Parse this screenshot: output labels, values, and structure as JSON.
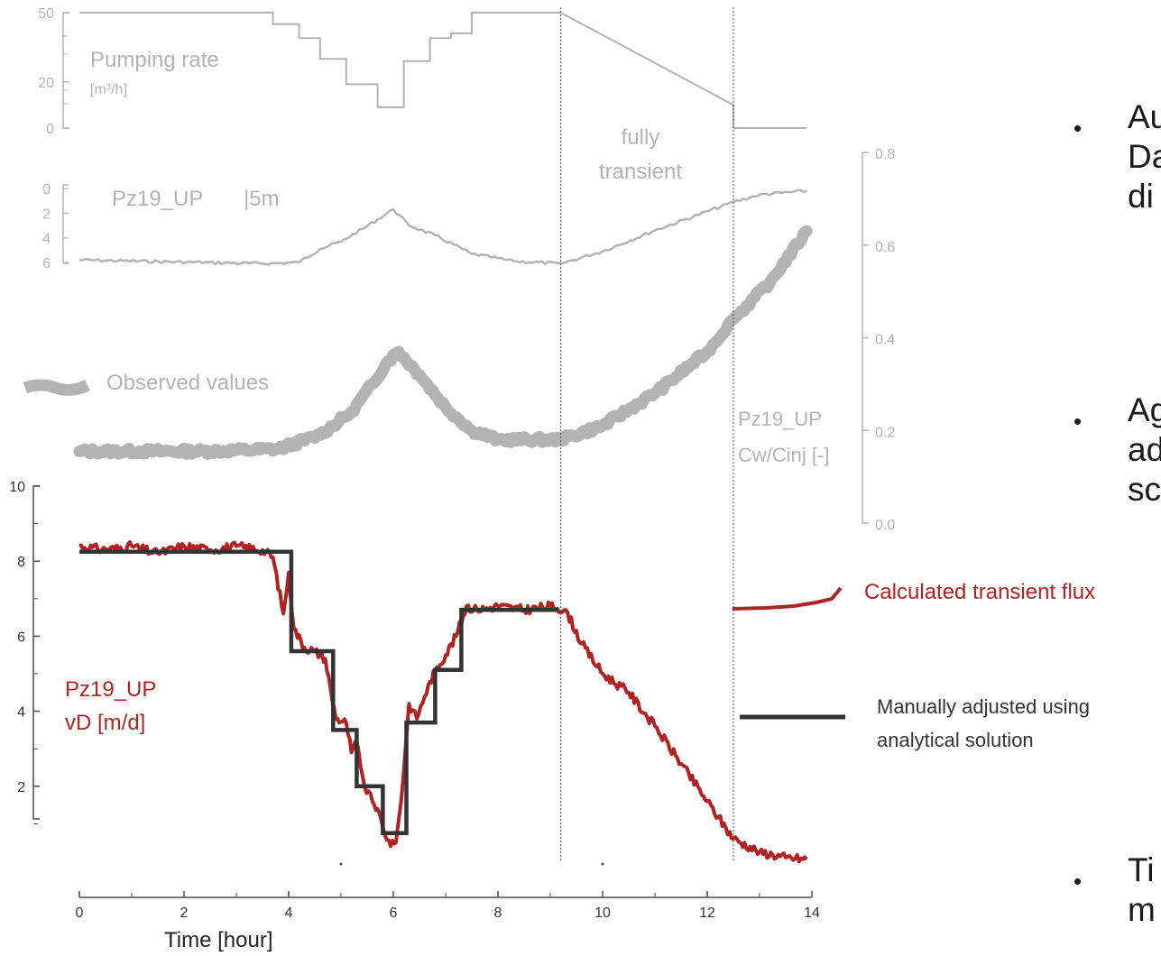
{
  "chart_data": [
    {
      "type": "line",
      "panel": "pumping",
      "label": "Pumping rate",
      "unit": "[m³/h]",
      "y_ticks": [
        0,
        20,
        50
      ],
      "x": [
        0,
        3.7,
        3.7,
        4.2,
        4.2,
        4.6,
        4.6,
        5.1,
        5.1,
        5.7,
        5.7,
        6.2,
        6.2,
        6.7,
        6.7,
        7.1,
        7.1,
        7.5,
        7.5,
        9.2,
        12.5,
        12.5,
        13.9
      ],
      "y": [
        50,
        50,
        45,
        45,
        39,
        39,
        30,
        30,
        19,
        19,
        9,
        9,
        29,
        29,
        39,
        39,
        41,
        41,
        50,
        50,
        10,
        0,
        0
      ]
    },
    {
      "type": "line",
      "panel": "groundwater",
      "label": "Pz19_UP",
      "scale_label": "|5m",
      "y_ticks": [
        0,
        2,
        4,
        6
      ],
      "x": [
        0,
        3.5,
        4.2,
        4.6,
        5.0,
        5.4,
        5.7,
        6.0,
        6.3,
        6.8,
        7.5,
        8.3,
        9.2,
        10.0,
        11.0,
        12.5,
        13.0,
        13.9
      ],
      "y": [
        5.8,
        6.1,
        6.0,
        4.9,
        4.3,
        3.3,
        2.5,
        1.7,
        3.0,
        3.8,
        5.3,
        5.9,
        6.1,
        5.1,
        3.4,
        1.1,
        0.5,
        0.2
      ]
    },
    {
      "type": "line",
      "panel": "concentration",
      "legend_label": "Observed values",
      "label_line1": "Pz19_UP",
      "label_line2": "Cw/Cinj [-]",
      "y_ticks": [
        "0.0",
        "0.2",
        "0.4",
        "0.6",
        "0.8"
      ],
      "ylim": [
        0,
        0.8
      ],
      "x": [
        0,
        2.5,
        3.8,
        4.6,
        5.2,
        5.6,
        5.9,
        6.1,
        6.5,
        7.0,
        7.5,
        8.0,
        9.2,
        10.0,
        11.0,
        12.0,
        12.5,
        13.2,
        13.9
      ],
      "y": [
        0.155,
        0.155,
        0.16,
        0.19,
        0.24,
        0.3,
        0.35,
        0.37,
        0.32,
        0.25,
        0.2,
        0.18,
        0.18,
        0.21,
        0.28,
        0.37,
        0.44,
        0.52,
        0.63
      ]
    },
    {
      "type": "line",
      "panel": "flux",
      "label_line1": "Pz19_UP",
      "label_line2": "vD [m/d]",
      "y_ticks": [
        "2",
        "4",
        "6",
        "8",
        "10"
      ],
      "ylim": [
        0,
        10
      ],
      "x_ticks": [
        "0",
        "2",
        "4",
        "6",
        "8",
        "10",
        "12",
        "14"
      ],
      "xlim": [
        0,
        14
      ],
      "xlabel": "Time   [hour]",
      "series": [
        {
          "name": "Calculated transient flux",
          "color": "#b22222",
          "x": [
            0,
            0.5,
            1,
            1.5,
            2,
            2.5,
            3,
            3.5,
            3.7,
            3.9,
            4.0,
            4.1,
            4.3,
            4.5,
            4.7,
            4.8,
            4.9,
            5.1,
            5.2,
            5.3,
            5.45,
            5.6,
            5.7,
            5.8,
            5.95,
            6.05,
            6.15,
            6.3,
            6.45,
            6.6,
            6.8,
            7.0,
            7.2,
            7.4,
            7.6,
            8.0,
            8.5,
            9.0,
            9.3,
            9.6,
            10.0,
            10.5,
            11.0,
            11.5,
            12.0,
            12.5,
            13.0,
            13.5,
            13.9
          ],
          "y": [
            8.4,
            8.3,
            8.4,
            8.2,
            8.4,
            8.3,
            8.4,
            8.3,
            8.1,
            6.6,
            7.7,
            6.2,
            5.7,
            5.6,
            5.4,
            4.6,
            3.8,
            3.7,
            2.9,
            3.2,
            2.0,
            1.6,
            1.4,
            0.9,
            0.4,
            0.5,
            1.6,
            4.2,
            3.8,
            4.4,
            5.1,
            5.5,
            6.0,
            6.8,
            6.7,
            6.8,
            6.7,
            6.8,
            6.7,
            5.8,
            5.0,
            4.5,
            3.6,
            2.6,
            1.6,
            0.6,
            0.25,
            0.1,
            0.05
          ]
        },
        {
          "name": "Manually adjusted using analytical solution",
          "color": "#333333",
          "x": [
            0,
            4.05,
            4.05,
            4.85,
            4.85,
            5.3,
            5.3,
            5.8,
            5.8,
            6.25,
            6.25,
            6.8,
            6.8,
            7.3,
            7.3,
            9.15
          ],
          "y": [
            8.25,
            8.25,
            5.6,
            5.6,
            3.5,
            3.5,
            2.0,
            2.0,
            0.75,
            0.75,
            3.7,
            3.7,
            5.1,
            5.1,
            6.7,
            6.7
          ]
        }
      ]
    }
  ],
  "annotations": {
    "fully_transient_line1": "fully",
    "fully_transient_line2": "transient",
    "vertical_marker_hours": [
      9.2,
      12.5
    ]
  },
  "bullets": [
    {
      "lines": [
        "Au",
        "Da",
        "di"
      ]
    },
    {
      "lines": [
        "Ag",
        "ad",
        "sc"
      ]
    },
    {
      "lines": [
        "Ti",
        "m"
      ]
    }
  ],
  "colors": {
    "grey": "#b3b3b3",
    "red": "#b22222",
    "dark": "#333333",
    "axis": "#4d4d4d"
  }
}
